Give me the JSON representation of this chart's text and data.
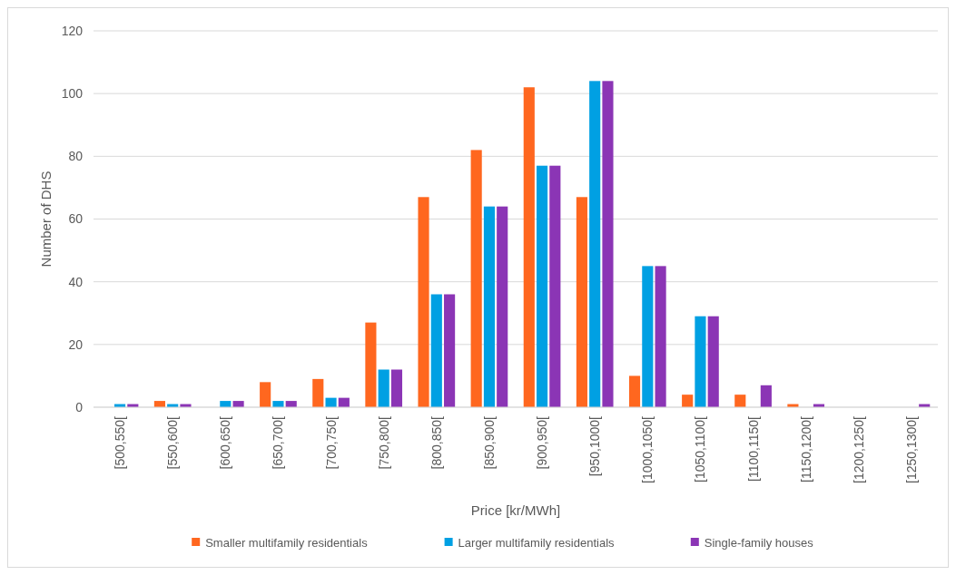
{
  "chart_data": {
    "type": "bar",
    "xlabel": "Price [kr/MWh]",
    "ylabel": "Number of DHS",
    "categories": [
      "[500,550[",
      "[550,600[",
      "[600,650[",
      "[650,700[",
      "[700,750[",
      "[750,800[",
      "[800,850[",
      "[850,900[",
      "[900,950[",
      "[950,1000[",
      "[1000,1050[",
      "[1050,1100[",
      "[1100,1150[",
      "[1150,1200[",
      "[1200,1250[",
      "[1250,1300["
    ],
    "series": [
      {
        "name": "Smaller multifamily residentials",
        "color": "#ff671f",
        "values": [
          0,
          2,
          0,
          8,
          9,
          27,
          67,
          82,
          102,
          67,
          10,
          4,
          4,
          1,
          0,
          0
        ]
      },
      {
        "name": "Larger multifamily residentials",
        "color": "#00a0e3",
        "values": [
          1,
          1,
          2,
          2,
          3,
          12,
          36,
          64,
          77,
          104,
          45,
          29,
          0,
          0,
          0,
          0
        ]
      },
      {
        "name": "Single-family houses",
        "color": "#8b35b5",
        "values": [
          1,
          1,
          2,
          2,
          3,
          12,
          36,
          64,
          77,
          104,
          45,
          29,
          7,
          1,
          0,
          1
        ]
      }
    ],
    "ylim": [
      0,
      120
    ],
    "yticks": [
      0,
      20,
      40,
      60,
      80,
      100,
      120
    ],
    "grid": "y",
    "legend": "bottom"
  }
}
